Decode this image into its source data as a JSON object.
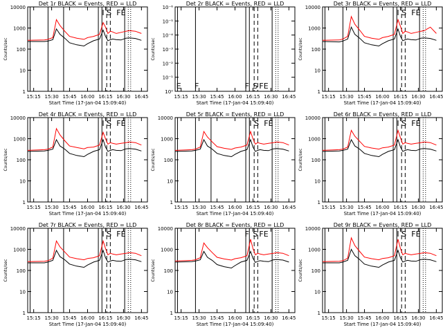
{
  "figure": {
    "xtick_labels": [
      "15:15",
      "15:30",
      "15:45",
      "16:00",
      "16:15",
      "16:30",
      "16:45"
    ],
    "xlabel": "Start Time (17-Jan-04 15:09:40)",
    "ylabel": "Counts/sec",
    "colors": {
      "events": "#000000",
      "lld": "#ff0000"
    }
  },
  "chart_data": [
    {
      "type": "line",
      "title": "Det 1r BLACK = Events, RED = LLD",
      "xlabel": "Start Time (17-Jan-04 15:09:40)",
      "ylabel": "Counts/sec",
      "yscale": "log",
      "ylim": [
        1,
        10000
      ],
      "ytick_labels": [
        "1",
        "10",
        "100",
        "1000",
        "10000"
      ],
      "xlim_minutes": [
        15.167,
        16.83
      ],
      "x_unit": "time of day",
      "vlines_solid": [
        "15:12",
        "15:27",
        "15:40",
        "16:09",
        "16:12",
        "16:31"
      ],
      "vlines_dashed": [
        "16:16",
        "16:19"
      ],
      "vlines_dotted": [
        "16:34",
        "16:36"
      ],
      "markers": [
        {
          "text": "I",
          "x": "16:13"
        },
        {
          "text": "S",
          "x": "16:18"
        },
        {
          "text": "FE",
          "x": "16:28"
        }
      ],
      "x": [
        "15:10",
        "15:24",
        "15:27",
        "15:31",
        "15:34",
        "15:37",
        "15:41",
        "15:45",
        "15:51",
        "15:57",
        "16:00",
        "16:05",
        "16:10",
        "16:13",
        "16:15",
        "16:17",
        "16:19",
        "16:21",
        "16:24",
        "16:28",
        "16:32",
        "16:35",
        "16:40",
        "16:45"
      ],
      "series": [
        {
          "name": "Events",
          "values": [
            230,
            230,
            240,
            280,
            900,
            500,
            330,
            200,
            160,
            140,
            180,
            250,
            300,
            800,
            400,
            250,
            280,
            300,
            280,
            270,
            330,
            340,
            320,
            260
          ]
        },
        {
          "name": "LLD",
          "values": [
            260,
            270,
            290,
            350,
            2500,
            1300,
            700,
            400,
            330,
            290,
            350,
            400,
            500,
            1800,
            1100,
            550,
            700,
            650,
            550,
            620,
            700,
            750,
            700,
            550
          ]
        }
      ]
    },
    {
      "type": "line",
      "title": "Det 2r BLACK = Events, RED = LLD",
      "xlabel": "Start Time (17-Jan-04 15:09:40)",
      "ylabel": "Counts/sec",
      "yscale": "log",
      "ylim": [
        1,
        1e-06
      ],
      "ytick_labels": [
        "10⁰",
        "10⁻¹",
        "10⁻²",
        "10⁻³",
        "10⁻⁴",
        "10⁻⁵",
        "10⁻⁶"
      ],
      "vlines_solid": [
        "15:12",
        "15:27",
        "16:09",
        "16:12",
        "16:31"
      ],
      "vlines_dashed": [
        "16:16",
        "16:19"
      ],
      "vlines_dotted": [
        "16:34",
        "16:36"
      ],
      "markers": [
        {
          "text": "E",
          "x": "15:13"
        },
        {
          "text": "F",
          "x": "15:28"
        },
        {
          "text": "F",
          "x": "16:10"
        },
        {
          "text": "S",
          "x": "16:17"
        },
        {
          "text": "FE",
          "x": "16:24"
        }
      ],
      "series": []
    },
    {
      "type": "line",
      "title": "Det 3r BLACK = Events, RED = LLD",
      "xlabel": "Start Time (17-Jan-04 15:09:40)",
      "ylabel": "Counts/sec",
      "yscale": "log",
      "ylim": [
        1,
        10000
      ],
      "ytick_labels": [
        "1",
        "10",
        "100",
        "1000",
        "10000"
      ],
      "vlines_solid": [
        "15:12",
        "15:27",
        "15:40",
        "16:09",
        "16:12",
        "16:31"
      ],
      "vlines_dashed": [
        "16:16",
        "16:19"
      ],
      "vlines_dotted": [
        "16:34",
        "16:36"
      ],
      "markers": [
        {
          "text": "I",
          "x": "16:13"
        },
        {
          "text": "S",
          "x": "16:18"
        },
        {
          "text": "FE",
          "x": "16:28"
        }
      ],
      "x": [
        "15:10",
        "15:24",
        "15:27",
        "15:31",
        "15:34",
        "15:37",
        "15:41",
        "15:45",
        "15:51",
        "15:57",
        "16:00",
        "16:05",
        "16:10",
        "16:13",
        "16:15",
        "16:17",
        "16:19",
        "16:21",
        "16:24",
        "16:28",
        "16:32",
        "16:35",
        "16:40",
        "16:45"
      ],
      "series": [
        {
          "name": "Events",
          "values": [
            230,
            220,
            240,
            300,
            1100,
            500,
            330,
            200,
            160,
            140,
            180,
            250,
            300,
            900,
            400,
            250,
            280,
            300,
            280,
            270,
            330,
            340,
            320,
            260
          ]
        },
        {
          "name": "LLD",
          "values": [
            260,
            270,
            300,
            400,
            3500,
            1500,
            800,
            400,
            330,
            290,
            350,
            400,
            500,
            2500,
            1200,
            550,
            700,
            650,
            550,
            620,
            700,
            750,
            1100,
            550
          ]
        }
      ]
    },
    {
      "type": "line",
      "title": "Det 4r BLACK = Events, RED = LLD",
      "xlabel": "Start Time (17-Jan-04 15:09:40)",
      "ylabel": "Counts/sec",
      "yscale": "log",
      "ylim": [
        1,
        10000
      ],
      "ytick_labels": [
        "1",
        "10",
        "100",
        "1000",
        "10000"
      ],
      "vlines_solid": [
        "15:12",
        "15:27",
        "15:40",
        "16:09",
        "16:12",
        "16:31"
      ],
      "vlines_dashed": [
        "16:16",
        "16:19"
      ],
      "vlines_dotted": [
        "16:34",
        "16:36"
      ],
      "markers": [
        {
          "text": "I",
          "x": "16:13"
        },
        {
          "text": "S",
          "x": "16:18"
        },
        {
          "text": "FE",
          "x": "16:28"
        }
      ],
      "x": [
        "15:10",
        "15:24",
        "15:27",
        "15:31",
        "15:34",
        "15:37",
        "15:41",
        "15:45",
        "15:51",
        "15:57",
        "16:00",
        "16:05",
        "16:10",
        "16:13",
        "16:15",
        "16:17",
        "16:19",
        "16:21",
        "16:24",
        "16:28",
        "16:32",
        "16:35",
        "16:40",
        "16:45"
      ],
      "series": [
        {
          "name": "Events",
          "values": [
            250,
            260,
            280,
            320,
            900,
            450,
            320,
            200,
            160,
            140,
            180,
            250,
            300,
            900,
            400,
            250,
            280,
            300,
            280,
            270,
            330,
            340,
            320,
            260
          ]
        },
        {
          "name": "LLD",
          "values": [
            280,
            300,
            320,
            400,
            3000,
            1500,
            800,
            450,
            380,
            330,
            380,
            400,
            500,
            2000,
            1000,
            550,
            650,
            600,
            550,
            600,
            650,
            700,
            650,
            500
          ]
        }
      ]
    },
    {
      "type": "line",
      "title": "Det 5r BLACK = Events, RED = LLD",
      "xlabel": "Start Time (17-Jan-04 15:09:40)",
      "ylabel": "Counts/sec",
      "yscale": "log",
      "ylim": [
        1,
        10000
      ],
      "ytick_labels": [
        "1",
        "10",
        "100",
        "1000",
        "10000"
      ],
      "vlines_solid": [
        "15:12",
        "15:27",
        "15:40",
        "16:09",
        "16:12",
        "16:31"
      ],
      "vlines_dashed": [
        "16:16",
        "16:19"
      ],
      "vlines_dotted": [
        "16:34",
        "16:36"
      ],
      "markers": [
        {
          "text": "I",
          "x": "16:13"
        },
        {
          "text": "S",
          "x": "16:18"
        },
        {
          "text": "FE",
          "x": "16:28"
        }
      ],
      "x": [
        "15:10",
        "15:24",
        "15:27",
        "15:31",
        "15:34",
        "15:37",
        "15:41",
        "15:45",
        "15:51",
        "15:57",
        "16:00",
        "16:05",
        "16:10",
        "16:13",
        "16:15",
        "16:17",
        "16:19",
        "16:21",
        "16:24",
        "16:28",
        "16:32",
        "16:35",
        "16:40",
        "16:45"
      ],
      "series": [
        {
          "name": "Events",
          "values": [
            250,
            260,
            280,
            320,
            900,
            450,
            320,
            200,
            160,
            140,
            180,
            250,
            300,
            900,
            400,
            250,
            280,
            300,
            280,
            270,
            330,
            340,
            320,
            260
          ]
        },
        {
          "name": "LLD",
          "values": [
            280,
            300,
            320,
            400,
            2200,
            1200,
            700,
            420,
            350,
            310,
            360,
            400,
            500,
            2200,
            1000,
            550,
            650,
            600,
            550,
            600,
            650,
            700,
            650,
            500
          ]
        }
      ]
    },
    {
      "type": "line",
      "title": "Det 6r BLACK = Events, RED = LLD",
      "xlabel": "Start Time (17-Jan-04 15:09:40)",
      "ylabel": "Counts/sec",
      "yscale": "log",
      "ylim": [
        1,
        10000
      ],
      "ytick_labels": [
        "1",
        "10",
        "100",
        "1000",
        "10000"
      ],
      "vlines_solid": [
        "15:12",
        "15:27",
        "15:40",
        "16:09",
        "16:12",
        "16:31"
      ],
      "vlines_dashed": [
        "16:16",
        "16:19"
      ],
      "vlines_dotted": [
        "16:34",
        "16:36"
      ],
      "markers": [
        {
          "text": "I",
          "x": "16:13"
        },
        {
          "text": "S",
          "x": "16:18"
        },
        {
          "text": "FE",
          "x": "16:28"
        }
      ],
      "x": [
        "15:10",
        "15:24",
        "15:27",
        "15:31",
        "15:34",
        "15:37",
        "15:41",
        "15:45",
        "15:51",
        "15:57",
        "16:00",
        "16:05",
        "16:10",
        "16:13",
        "16:15",
        "16:17",
        "16:19",
        "16:21",
        "16:24",
        "16:28",
        "16:32",
        "16:35",
        "16:40",
        "16:45"
      ],
      "series": [
        {
          "name": "Events",
          "values": [
            250,
            260,
            280,
            320,
            900,
            450,
            320,
            200,
            160,
            140,
            180,
            250,
            300,
            900,
            400,
            250,
            280,
            300,
            280,
            270,
            330,
            340,
            320,
            260
          ]
        },
        {
          "name": "LLD",
          "values": [
            280,
            300,
            320,
            400,
            2500,
            1300,
            750,
            430,
            360,
            320,
            370,
            400,
            500,
            2500,
            1100,
            550,
            650,
            600,
            550,
            600,
            650,
            700,
            650,
            500
          ]
        }
      ]
    },
    {
      "type": "line",
      "title": "Det 7r BLACK = Events, RED = LLD",
      "xlabel": "Start Time (17-Jan-04 15:09:40)",
      "ylabel": "Counts/sec",
      "yscale": "log",
      "ylim": [
        1,
        10000
      ],
      "ytick_labels": [
        "1",
        "10",
        "100",
        "1000",
        "10000"
      ],
      "vlines_solid": [
        "15:12",
        "15:27",
        "15:40",
        "16:09",
        "16:12",
        "16:31"
      ],
      "vlines_dashed": [
        "16:16",
        "16:19"
      ],
      "vlines_dotted": [
        "16:34",
        "16:36"
      ],
      "markers": [
        {
          "text": "I",
          "x": "16:13"
        },
        {
          "text": "S",
          "x": "16:18"
        },
        {
          "text": "FE",
          "x": "16:28"
        }
      ],
      "x": [
        "15:10",
        "15:24",
        "15:27",
        "15:31",
        "15:34",
        "15:37",
        "15:41",
        "15:45",
        "15:51",
        "15:57",
        "16:00",
        "16:05",
        "16:10",
        "16:13",
        "16:15",
        "16:17",
        "16:19",
        "16:21",
        "16:24",
        "16:28",
        "16:32",
        "16:35",
        "16:40",
        "16:45"
      ],
      "series": [
        {
          "name": "Events",
          "values": [
            230,
            230,
            250,
            300,
            900,
            450,
            320,
            200,
            160,
            140,
            180,
            250,
            300,
            900,
            400,
            250,
            280,
            300,
            280,
            270,
            330,
            340,
            320,
            260
          ]
        },
        {
          "name": "LLD",
          "values": [
            260,
            270,
            290,
            380,
            2500,
            1300,
            750,
            430,
            360,
            320,
            370,
            400,
            500,
            2500,
            1100,
            550,
            650,
            600,
            550,
            600,
            650,
            700,
            650,
            500
          ]
        }
      ]
    },
    {
      "type": "line",
      "title": "Det 8r BLACK = Events, RED = LLD",
      "xlabel": "Start Time (17-Jan-04 15:09:40)",
      "ylabel": "Counts/sec",
      "yscale": "log",
      "ylim": [
        1,
        10000
      ],
      "ytick_labels": [
        "1",
        "10",
        "100",
        "1000",
        "10000"
      ],
      "vlines_solid": [
        "15:12",
        "15:27",
        "16:09",
        "16:12",
        "16:31"
      ],
      "vlines_dashed": [
        "16:16",
        "16:19"
      ],
      "vlines_dotted": [
        "16:34",
        "16:36"
      ],
      "markers": [
        {
          "text": "F",
          "x": "16:10"
        },
        {
          "text": "S",
          "x": "16:17"
        },
        {
          "text": "FE",
          "x": "16:24"
        }
      ],
      "x": [
        "15:10",
        "15:24",
        "15:27",
        "15:31",
        "15:34",
        "15:37",
        "15:41",
        "15:45",
        "15:51",
        "15:57",
        "16:00",
        "16:05",
        "16:10",
        "16:13",
        "16:15",
        "16:17",
        "16:19",
        "16:21",
        "16:24",
        "16:28",
        "16:32",
        "16:35",
        "16:40",
        "16:45"
      ],
      "series": [
        {
          "name": "Events",
          "values": [
            250,
            260,
            280,
            320,
            800,
            420,
            300,
            190,
            150,
            130,
            170,
            250,
            300,
            800,
            380,
            240,
            270,
            290,
            270,
            260,
            320,
            330,
            310,
            250
          ]
        },
        {
          "name": "LLD",
          "values": [
            280,
            300,
            320,
            400,
            2000,
            1200,
            700,
            420,
            350,
            310,
            360,
            400,
            500,
            3000,
            1100,
            550,
            650,
            600,
            550,
            600,
            650,
            700,
            650,
            500
          ]
        }
      ]
    },
    {
      "type": "line",
      "title": "Det 9r BLACK = Events, RED = LLD",
      "xlabel": "Start Time (17-Jan-04 15:09:40)",
      "ylabel": "Counts/sec",
      "yscale": "log",
      "ylim": [
        1,
        10000
      ],
      "ytick_labels": [
        "1",
        "10",
        "100",
        "1000",
        "10000"
      ],
      "vlines_solid": [
        "15:12",
        "15:27",
        "15:40",
        "16:09",
        "16:12",
        "16:31"
      ],
      "vlines_dashed": [
        "16:16",
        "16:19"
      ],
      "vlines_dotted": [
        "16:34",
        "16:36"
      ],
      "markers": [
        {
          "text": "I",
          "x": "16:13"
        },
        {
          "text": "S",
          "x": "16:18"
        },
        {
          "text": "FE",
          "x": "16:28"
        }
      ],
      "x": [
        "15:10",
        "15:24",
        "15:27",
        "15:31",
        "15:34",
        "15:37",
        "15:41",
        "15:45",
        "15:51",
        "15:57",
        "16:00",
        "16:05",
        "16:10",
        "16:13",
        "16:15",
        "16:17",
        "16:19",
        "16:21",
        "16:24",
        "16:28",
        "16:32",
        "16:35",
        "16:40",
        "16:45"
      ],
      "series": [
        {
          "name": "Events",
          "values": [
            230,
            230,
            250,
            300,
            1000,
            500,
            330,
            200,
            160,
            140,
            180,
            250,
            300,
            900,
            400,
            250,
            280,
            300,
            280,
            270,
            330,
            340,
            320,
            260
          ]
        },
        {
          "name": "LLD",
          "values": [
            260,
            270,
            290,
            380,
            3500,
            1500,
            800,
            430,
            360,
            320,
            370,
            400,
            500,
            3000,
            1100,
            550,
            650,
            600,
            550,
            600,
            650,
            700,
            650,
            500
          ]
        }
      ]
    }
  ]
}
